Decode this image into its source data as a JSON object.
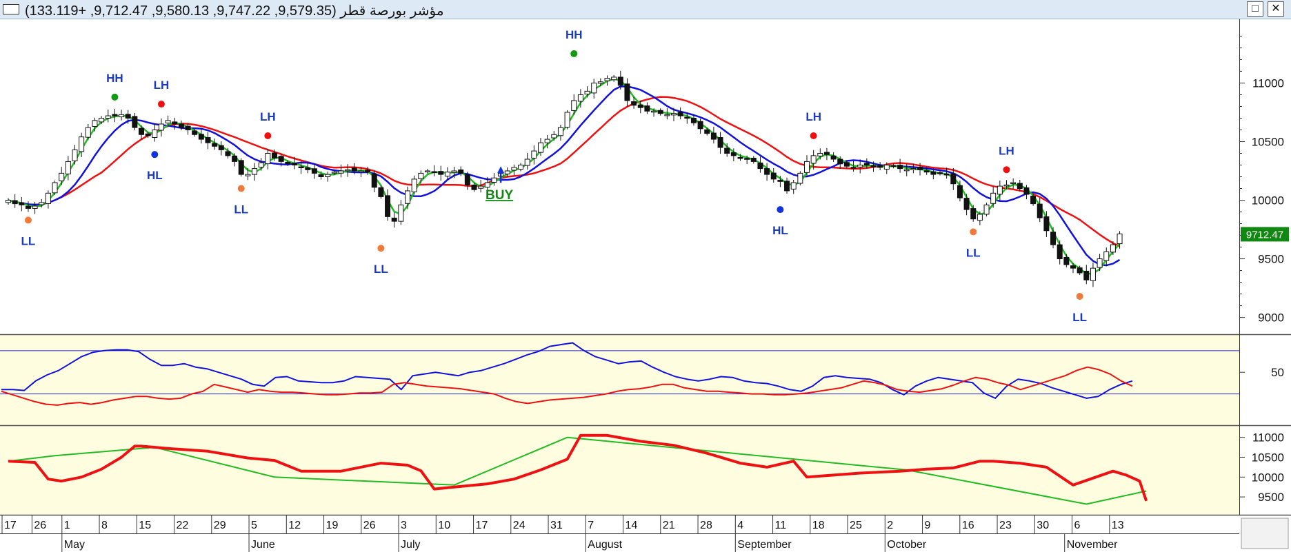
{
  "window": {
    "title": "مؤشر بورصة قطر (9,579.35, 9,747.22, 9,580.13, 9,712.47, +133.119)",
    "restore_glyph": "□",
    "close_glyph": "✕",
    "title_icon": "window-icon"
  },
  "colors": {
    "price_panel_bg": "#ffffff",
    "indicator_panel_bg": "#fffde0",
    "ma_fast": "#22bb22",
    "ma_mid": "#1111dd",
    "ma_slow": "#ee1111",
    "label_text": "#1a3bbf",
    "hh_marker": "#119911",
    "lh_marker": "#ee1111",
    "hl_marker": "#1133dd",
    "ll_marker": "#f07a3a",
    "buy": "#118811",
    "last_price_bg": "#118811"
  },
  "chart_data": [
    {
      "id": "price",
      "type": "candlestick",
      "last_price_label": "9712.47",
      "y_ticks": [
        9000,
        9500,
        10000,
        10500,
        11000
      ],
      "ylim": [
        8880,
        11520
      ],
      "closes": [
        10000,
        9970,
        9960,
        9930,
        9950,
        9980,
        10060,
        10150,
        10230,
        10330,
        10430,
        10540,
        10620,
        10680,
        10700,
        10720,
        10720,
        10730,
        10700,
        10620,
        10560,
        10550,
        10600,
        10650,
        10680,
        10650,
        10620,
        10600,
        10560,
        10520,
        10490,
        10460,
        10430,
        10380,
        10330,
        10220,
        10220,
        10270,
        10320,
        10400,
        10360,
        10330,
        10310,
        10300,
        10280,
        10260,
        10230,
        10200,
        10220,
        10240,
        10250,
        10260,
        10250,
        10250,
        10240,
        10110,
        10030,
        9860,
        9820,
        9960,
        10080,
        10180,
        10230,
        10250,
        10240,
        10220,
        10240,
        10250,
        10230,
        10130,
        10090,
        10120,
        10150,
        10190,
        10230,
        10250,
        10280,
        10300,
        10350,
        10420,
        10490,
        10520,
        10560,
        10620,
        10750,
        10850,
        10900,
        10930,
        11000,
        11010,
        11040,
        11050,
        10980,
        10850,
        10810,
        10790,
        10760,
        10760,
        10740,
        10730,
        10740,
        10720,
        10700,
        10660,
        10610,
        10570,
        10520,
        10450,
        10400,
        10380,
        10360,
        10350,
        10330,
        10270,
        10220,
        10180,
        10160,
        10080,
        10150,
        10230,
        10330,
        10380,
        10400,
        10390,
        10350,
        10310,
        10290,
        10280,
        10300,
        10300,
        10290,
        10280,
        10300,
        10290,
        10270,
        10260,
        10270,
        10260,
        10240,
        10220,
        10230,
        10220,
        10140,
        10020,
        9920,
        9840,
        9880,
        9960,
        10060,
        10120,
        10130,
        10150,
        10100,
        10050,
        9970,
        9850,
        9740,
        9620,
        9500,
        9450,
        9420,
        9380,
        9320,
        9420,
        9500,
        9560,
        9620,
        9712.47
      ],
      "signals": [
        {
          "label": "LL",
          "kind": "ll",
          "bar": 3,
          "value": 9830
        },
        {
          "label": "HH",
          "kind": "hh",
          "bar": 16,
          "value": 10880
        },
        {
          "label": "LH",
          "kind": "lh",
          "bar": 23,
          "value": 10820
        },
        {
          "label": "HL",
          "kind": "hl",
          "bar": 22,
          "value": 10390
        },
        {
          "label": "LH",
          "kind": "lh",
          "bar": 39,
          "value": 10550
        },
        {
          "label": "LL",
          "kind": "ll",
          "bar": 35,
          "value": 10100
        },
        {
          "label": "LL",
          "kind": "ll",
          "bar": 56,
          "value": 9590
        },
        {
          "label": "HH",
          "kind": "hh",
          "bar": 85,
          "value": 11250
        },
        {
          "label": "HL",
          "kind": "hl",
          "bar": 116,
          "value": 9920
        },
        {
          "label": "LH",
          "kind": "lh",
          "bar": 121,
          "value": 10550
        },
        {
          "label": "LL",
          "kind": "ll",
          "bar": 145,
          "value": 9730
        },
        {
          "label": "LH",
          "kind": "lh",
          "bar": 150,
          "value": 10260
        },
        {
          "label": "LL",
          "kind": "ll",
          "bar": 161,
          "value": 9180
        }
      ],
      "buy": {
        "label": "BUY",
        "bar": 74,
        "value": 10290
      }
    },
    {
      "id": "oscillator",
      "type": "line",
      "y_ticks": [
        50
      ],
      "ylim": [
        -8,
        90
      ],
      "levels": [
        75,
        25
      ],
      "series": [
        {
          "values": [
            30,
            30,
            29,
            40,
            47,
            52,
            60,
            68,
            73,
            75,
            76,
            76,
            74,
            65,
            58,
            58,
            60,
            56,
            54,
            50,
            46,
            42,
            36,
            34,
            44,
            45,
            40,
            39,
            38,
            38,
            40,
            45,
            44,
            43,
            42,
            30,
            46,
            48,
            50,
            48,
            46,
            50,
            52,
            56,
            60,
            65,
            70,
            74,
            80,
            82,
            84,
            75,
            68,
            64,
            60,
            62,
            63,
            56,
            50,
            45,
            42,
            40,
            42,
            45,
            44,
            40,
            38,
            37,
            34,
            30,
            28,
            34,
            44,
            46,
            44,
            43,
            42,
            38,
            30,
            24,
            34,
            40,
            44,
            42,
            40,
            38,
            26,
            20,
            34,
            42,
            40,
            37,
            32,
            28,
            24,
            20,
            22,
            30,
            36,
            40
          ]
        },
        {
          "values": [
            28,
            24,
            20,
            16,
            13,
            12,
            14,
            15,
            13,
            15,
            18,
            20,
            22,
            22,
            20,
            19,
            20,
            25,
            28,
            36,
            33,
            30,
            27,
            30,
            28,
            27,
            27,
            26,
            25,
            24,
            24,
            25,
            26,
            26,
            27,
            36,
            38,
            36,
            34,
            33,
            32,
            31,
            29,
            27,
            25,
            20,
            16,
            14,
            16,
            18,
            19,
            20,
            21,
            23,
            25,
            28,
            30,
            31,
            33,
            36,
            36,
            32,
            30,
            28,
            28,
            27,
            26,
            25,
            25,
            24,
            24,
            25,
            26,
            28,
            30,
            32,
            36,
            40,
            38,
            35,
            30,
            28,
            27,
            29,
            31,
            35,
            40,
            44,
            42,
            38,
            35,
            30,
            34,
            38,
            42,
            46,
            52,
            56,
            53,
            48,
            40,
            34
          ]
        }
      ]
    },
    {
      "id": "trend",
      "type": "line",
      "y_ticks": [
        9500,
        10000,
        10500,
        11000
      ],
      "ylim": [
        9120,
        11220
      ],
      "series": [
        {
          "x": [
            0,
            7,
            22,
            40,
            67,
            84,
            135,
            162,
            171
          ],
          "values": [
            10400,
            10540,
            10750,
            10000,
            9800,
            11000,
            10180,
            9320,
            9650
          ]
        },
        {
          "x": [
            0,
            4,
            6,
            8,
            11,
            14,
            17,
            19,
            20,
            24,
            30,
            36,
            40,
            44,
            50,
            56,
            60,
            62,
            64,
            67,
            72,
            76,
            80,
            84,
            86,
            90,
            95,
            100,
            105,
            110,
            114,
            118,
            120,
            124,
            128,
            134,
            138,
            142,
            146,
            148,
            152,
            156,
            160,
            166,
            168,
            170,
            171
          ],
          "values": [
            10400,
            10370,
            9950,
            9900,
            10000,
            10200,
            10500,
            10780,
            10780,
            10720,
            10650,
            10480,
            10420,
            10150,
            10150,
            10350,
            10300,
            10160,
            9700,
            9750,
            9830,
            9950,
            10180,
            10450,
            11050,
            11050,
            10900,
            10800,
            10600,
            10350,
            10250,
            10400,
            10000,
            10050,
            10100,
            10150,
            10200,
            10230,
            10400,
            10400,
            10350,
            10250,
            9800,
            10150,
            10050,
            9900,
            9400
          ]
        }
      ]
    },
    {
      "id": "time-axis",
      "type": "axis",
      "day_ticks": [
        {
          "label": "17",
          "bar": 0
        },
        {
          "label": "26",
          "bar": 4
        },
        {
          "label": "1",
          "bar": 8
        },
        {
          "label": "8",
          "bar": 13
        },
        {
          "label": "15",
          "bar": 18
        },
        {
          "label": "22",
          "bar": 23
        },
        {
          "label": "29",
          "bar": 28
        },
        {
          "label": "5",
          "bar": 33
        },
        {
          "label": "12",
          "bar": 38
        },
        {
          "label": "19",
          "bar": 43
        },
        {
          "label": "26",
          "bar": 48
        },
        {
          "label": "3",
          "bar": 53
        },
        {
          "label": "10",
          "bar": 58
        },
        {
          "label": "17",
          "bar": 63
        },
        {
          "label": "24",
          "bar": 68
        },
        {
          "label": "31",
          "bar": 73
        },
        {
          "label": "7",
          "bar": 78
        },
        {
          "label": "14",
          "bar": 83
        },
        {
          "label": "21",
          "bar": 88
        },
        {
          "label": "28",
          "bar": 93
        },
        {
          "label": "4",
          "bar": 98
        },
        {
          "label": "11",
          "bar": 103
        },
        {
          "label": "18",
          "bar": 108
        },
        {
          "label": "25",
          "bar": 113
        },
        {
          "label": "2",
          "bar": 118
        },
        {
          "label": "9",
          "bar": 123
        },
        {
          "label": "16",
          "bar": 128
        },
        {
          "label": "23",
          "bar": 133
        },
        {
          "label": "30",
          "bar": 138
        },
        {
          "label": "6",
          "bar": 143
        },
        {
          "label": "13",
          "bar": 148
        }
      ],
      "months": [
        {
          "label": "May",
          "bar": 8
        },
        {
          "label": "June",
          "bar": 33
        },
        {
          "label": "July",
          "bar": 53
        },
        {
          "label": "August",
          "bar": 78
        },
        {
          "label": "September",
          "bar": 98
        },
        {
          "label": "October",
          "bar": 118
        },
        {
          "label": "November",
          "bar": 142
        }
      ]
    }
  ]
}
